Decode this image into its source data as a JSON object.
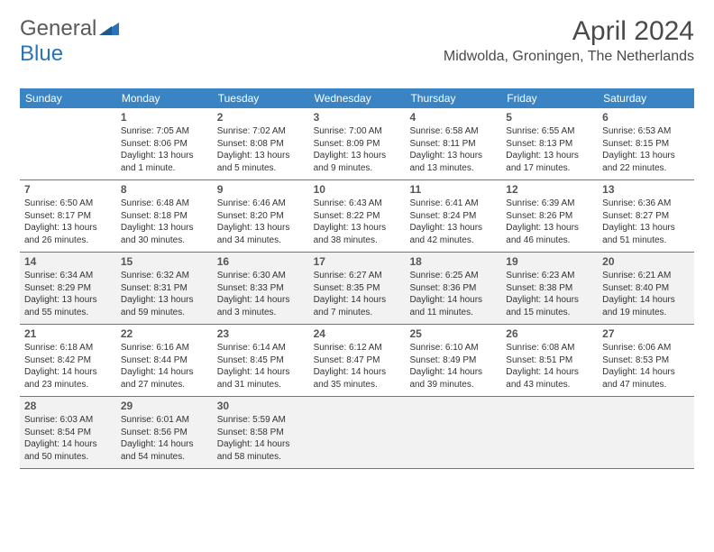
{
  "logo": {
    "part1": "General",
    "part2": "Blue"
  },
  "title": "April 2024",
  "location": "Midwolda, Groningen, The Netherlands",
  "colors": {
    "header_bg": "#3b84c4",
    "header_text": "#ffffff",
    "shaded_bg": "#f2f2f2",
    "border": "#3b84c4",
    "logo_gray": "#5a5a5a",
    "logo_blue": "#2a73b8"
  },
  "weekdays": [
    "Sunday",
    "Monday",
    "Tuesday",
    "Wednesday",
    "Thursday",
    "Friday",
    "Saturday"
  ],
  "weeks": [
    [
      {
        "day": "",
        "sunrise": "",
        "sunset": "",
        "daylight": ""
      },
      {
        "day": "1",
        "sunrise": "Sunrise: 7:05 AM",
        "sunset": "Sunset: 8:06 PM",
        "daylight": "Daylight: 13 hours and 1 minute."
      },
      {
        "day": "2",
        "sunrise": "Sunrise: 7:02 AM",
        "sunset": "Sunset: 8:08 PM",
        "daylight": "Daylight: 13 hours and 5 minutes."
      },
      {
        "day": "3",
        "sunrise": "Sunrise: 7:00 AM",
        "sunset": "Sunset: 8:09 PM",
        "daylight": "Daylight: 13 hours and 9 minutes."
      },
      {
        "day": "4",
        "sunrise": "Sunrise: 6:58 AM",
        "sunset": "Sunset: 8:11 PM",
        "daylight": "Daylight: 13 hours and 13 minutes."
      },
      {
        "day": "5",
        "sunrise": "Sunrise: 6:55 AM",
        "sunset": "Sunset: 8:13 PM",
        "daylight": "Daylight: 13 hours and 17 minutes."
      },
      {
        "day": "6",
        "sunrise": "Sunrise: 6:53 AM",
        "sunset": "Sunset: 8:15 PM",
        "daylight": "Daylight: 13 hours and 22 minutes."
      }
    ],
    [
      {
        "day": "7",
        "sunrise": "Sunrise: 6:50 AM",
        "sunset": "Sunset: 8:17 PM",
        "daylight": "Daylight: 13 hours and 26 minutes."
      },
      {
        "day": "8",
        "sunrise": "Sunrise: 6:48 AM",
        "sunset": "Sunset: 8:18 PM",
        "daylight": "Daylight: 13 hours and 30 minutes."
      },
      {
        "day": "9",
        "sunrise": "Sunrise: 6:46 AM",
        "sunset": "Sunset: 8:20 PM",
        "daylight": "Daylight: 13 hours and 34 minutes."
      },
      {
        "day": "10",
        "sunrise": "Sunrise: 6:43 AM",
        "sunset": "Sunset: 8:22 PM",
        "daylight": "Daylight: 13 hours and 38 minutes."
      },
      {
        "day": "11",
        "sunrise": "Sunrise: 6:41 AM",
        "sunset": "Sunset: 8:24 PM",
        "daylight": "Daylight: 13 hours and 42 minutes."
      },
      {
        "day": "12",
        "sunrise": "Sunrise: 6:39 AM",
        "sunset": "Sunset: 8:26 PM",
        "daylight": "Daylight: 13 hours and 46 minutes."
      },
      {
        "day": "13",
        "sunrise": "Sunrise: 6:36 AM",
        "sunset": "Sunset: 8:27 PM",
        "daylight": "Daylight: 13 hours and 51 minutes."
      }
    ],
    [
      {
        "day": "14",
        "sunrise": "Sunrise: 6:34 AM",
        "sunset": "Sunset: 8:29 PM",
        "daylight": "Daylight: 13 hours and 55 minutes."
      },
      {
        "day": "15",
        "sunrise": "Sunrise: 6:32 AM",
        "sunset": "Sunset: 8:31 PM",
        "daylight": "Daylight: 13 hours and 59 minutes."
      },
      {
        "day": "16",
        "sunrise": "Sunrise: 6:30 AM",
        "sunset": "Sunset: 8:33 PM",
        "daylight": "Daylight: 14 hours and 3 minutes."
      },
      {
        "day": "17",
        "sunrise": "Sunrise: 6:27 AM",
        "sunset": "Sunset: 8:35 PM",
        "daylight": "Daylight: 14 hours and 7 minutes."
      },
      {
        "day": "18",
        "sunrise": "Sunrise: 6:25 AM",
        "sunset": "Sunset: 8:36 PM",
        "daylight": "Daylight: 14 hours and 11 minutes."
      },
      {
        "day": "19",
        "sunrise": "Sunrise: 6:23 AM",
        "sunset": "Sunset: 8:38 PM",
        "daylight": "Daylight: 14 hours and 15 minutes."
      },
      {
        "day": "20",
        "sunrise": "Sunrise: 6:21 AM",
        "sunset": "Sunset: 8:40 PM",
        "daylight": "Daylight: 14 hours and 19 minutes."
      }
    ],
    [
      {
        "day": "21",
        "sunrise": "Sunrise: 6:18 AM",
        "sunset": "Sunset: 8:42 PM",
        "daylight": "Daylight: 14 hours and 23 minutes."
      },
      {
        "day": "22",
        "sunrise": "Sunrise: 6:16 AM",
        "sunset": "Sunset: 8:44 PM",
        "daylight": "Daylight: 14 hours and 27 minutes."
      },
      {
        "day": "23",
        "sunrise": "Sunrise: 6:14 AM",
        "sunset": "Sunset: 8:45 PM",
        "daylight": "Daylight: 14 hours and 31 minutes."
      },
      {
        "day": "24",
        "sunrise": "Sunrise: 6:12 AM",
        "sunset": "Sunset: 8:47 PM",
        "daylight": "Daylight: 14 hours and 35 minutes."
      },
      {
        "day": "25",
        "sunrise": "Sunrise: 6:10 AM",
        "sunset": "Sunset: 8:49 PM",
        "daylight": "Daylight: 14 hours and 39 minutes."
      },
      {
        "day": "26",
        "sunrise": "Sunrise: 6:08 AM",
        "sunset": "Sunset: 8:51 PM",
        "daylight": "Daylight: 14 hours and 43 minutes."
      },
      {
        "day": "27",
        "sunrise": "Sunrise: 6:06 AM",
        "sunset": "Sunset: 8:53 PM",
        "daylight": "Daylight: 14 hours and 47 minutes."
      }
    ],
    [
      {
        "day": "28",
        "sunrise": "Sunrise: 6:03 AM",
        "sunset": "Sunset: 8:54 PM",
        "daylight": "Daylight: 14 hours and 50 minutes."
      },
      {
        "day": "29",
        "sunrise": "Sunrise: 6:01 AM",
        "sunset": "Sunset: 8:56 PM",
        "daylight": "Daylight: 14 hours and 54 minutes."
      },
      {
        "day": "30",
        "sunrise": "Sunrise: 5:59 AM",
        "sunset": "Sunset: 8:58 PM",
        "daylight": "Daylight: 14 hours and 58 minutes."
      },
      {
        "day": "",
        "sunrise": "",
        "sunset": "",
        "daylight": ""
      },
      {
        "day": "",
        "sunrise": "",
        "sunset": "",
        "daylight": ""
      },
      {
        "day": "",
        "sunrise": "",
        "sunset": "",
        "daylight": ""
      },
      {
        "day": "",
        "sunrise": "",
        "sunset": "",
        "daylight": ""
      }
    ]
  ],
  "shaded_weeks": [
    false,
    false,
    true,
    false,
    true
  ]
}
